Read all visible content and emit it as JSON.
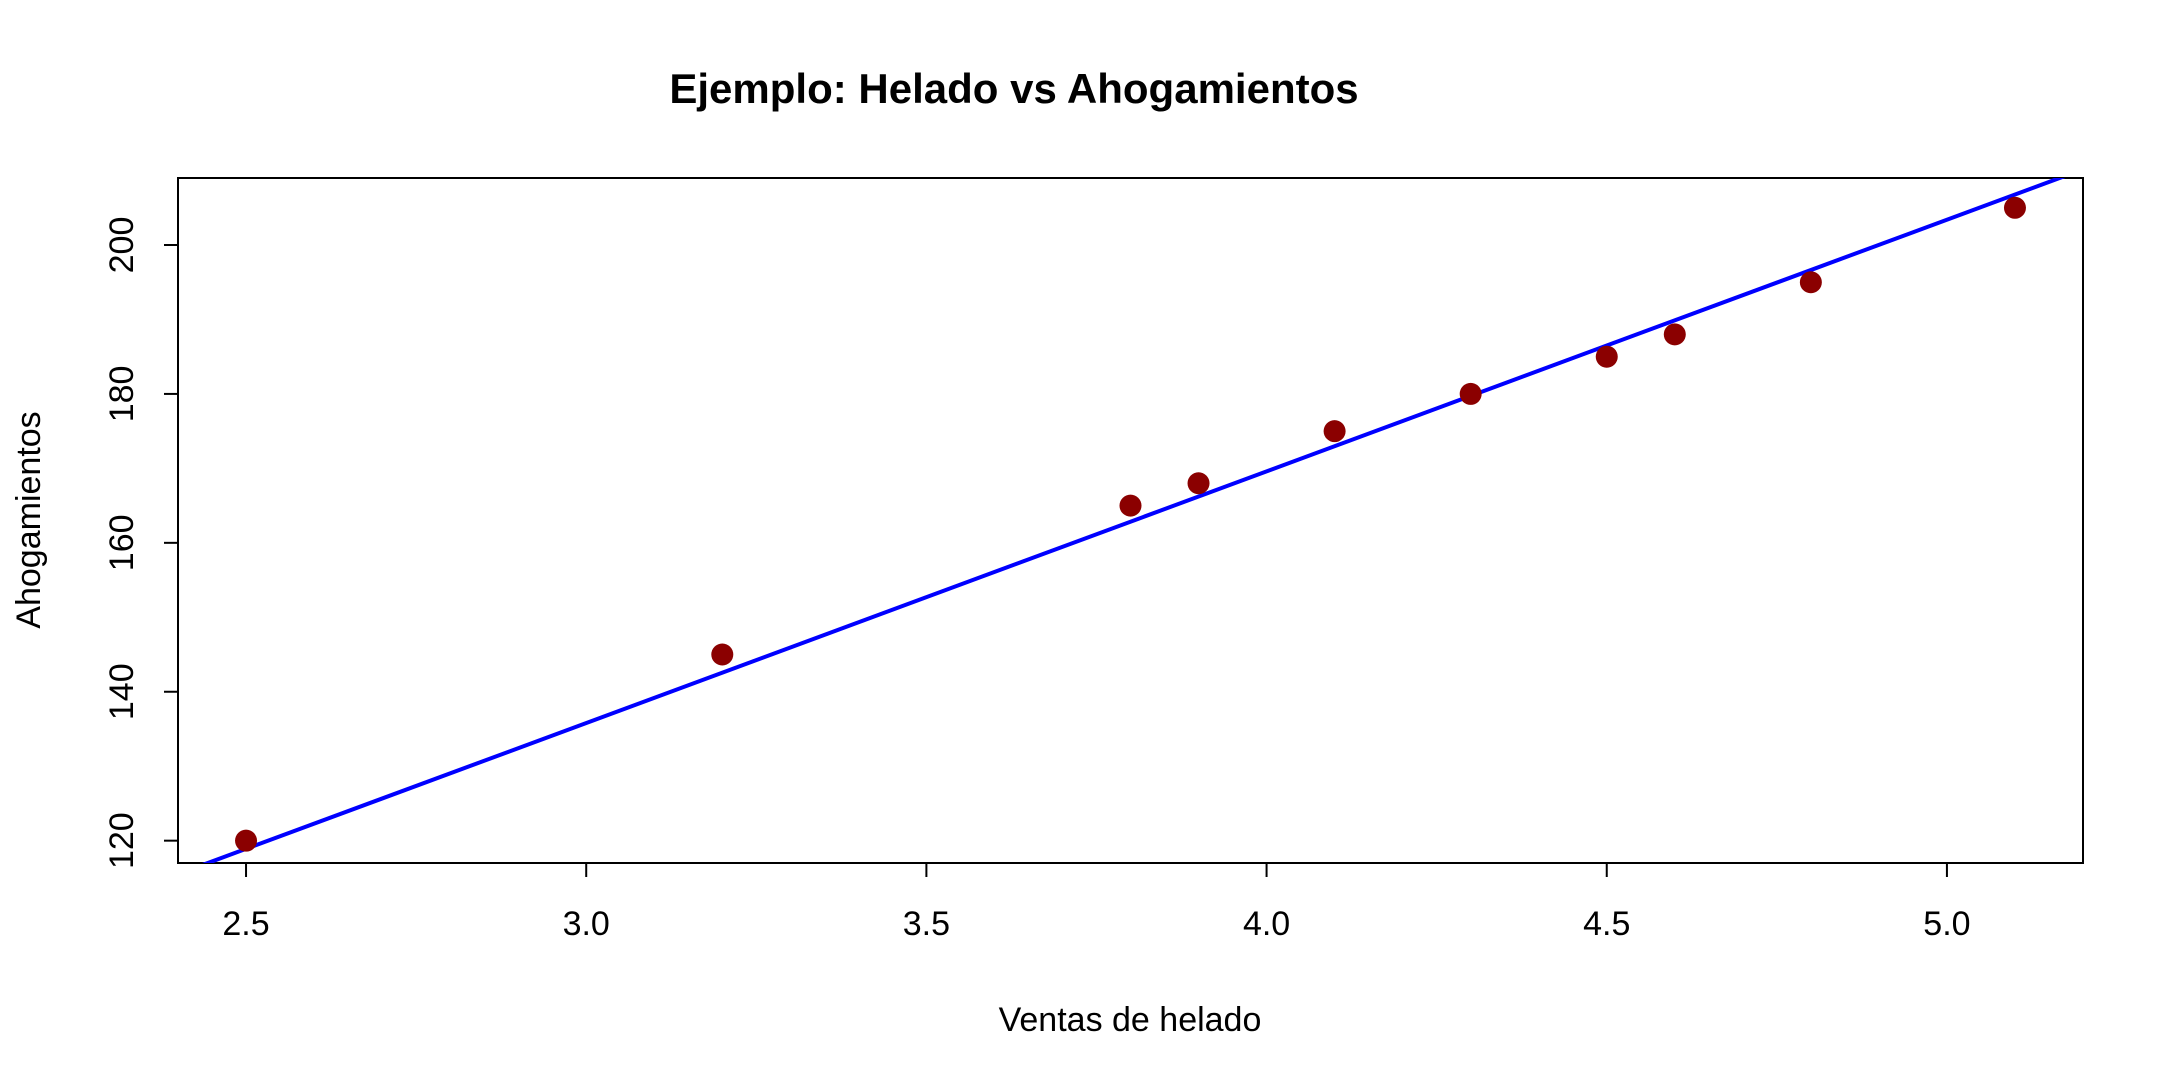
{
  "chart_data": {
    "type": "scatter",
    "title": "Ejemplo: Helado vs Ahogamientos",
    "xlabel": "Ventas de helado",
    "ylabel": "Ahogamientos",
    "xlim": [
      2.4,
      5.2
    ],
    "ylim": [
      117,
      209
    ],
    "x_ticks": [
      2.5,
      3.0,
      3.5,
      4.0,
      4.5,
      5.0
    ],
    "x_tick_labels": [
      "2.5",
      "3.0",
      "3.5",
      "4.0",
      "4.5",
      "5.0"
    ],
    "y_ticks": [
      120,
      140,
      160,
      180,
      200
    ],
    "y_tick_labels": [
      "120",
      "140",
      "160",
      "180",
      "200"
    ],
    "grid": false,
    "legend": "none",
    "point_color": "#8b0000",
    "line_color": "#0000ff",
    "points": [
      {
        "x": 2.5,
        "y": 120
      },
      {
        "x": 3.2,
        "y": 145
      },
      {
        "x": 3.8,
        "y": 165
      },
      {
        "x": 3.9,
        "y": 168
      },
      {
        "x": 4.1,
        "y": 175
      },
      {
        "x": 4.3,
        "y": 180
      },
      {
        "x": 4.5,
        "y": 185
      },
      {
        "x": 4.6,
        "y": 188
      },
      {
        "x": 4.8,
        "y": 195
      },
      {
        "x": 5.1,
        "y": 205
      }
    ],
    "regression_line": {
      "intercept": 34.4,
      "slope": 33.8
    }
  }
}
